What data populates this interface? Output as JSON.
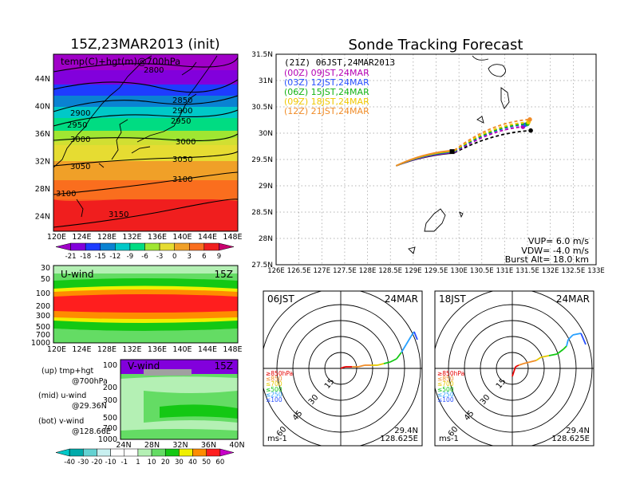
{
  "left_panel": {
    "title": "15Z,23MAR2013 (init)",
    "map": {
      "label": "temp(C)+hgt(m)@700hPa",
      "lat_ticks": [
        "44N",
        "40N",
        "36N",
        "32N",
        "28N",
        "24N"
      ],
      "lon_ticks": [
        "120E",
        "124E",
        "128E",
        "132E",
        "136E",
        "140E",
        "144E",
        "148E"
      ],
      "contour_labels": [
        "2800",
        "2850",
        "2900",
        "2900",
        "2950",
        "2950",
        "3000",
        "3000",
        "3050",
        "3050",
        "3100",
        "3100",
        "3150"
      ],
      "colorbar_labels": [
        "-21",
        "-18",
        "-15",
        "-12",
        "-9",
        "-6",
        "-3",
        "0",
        "3",
        "6",
        "9"
      ],
      "colorbar_colors": [
        "#a000c8",
        "#8200dc",
        "#1e3cff",
        "#0a82d2",
        "#00c8c8",
        "#00dc82",
        "#a0e632",
        "#e6dc32",
        "#f0a028",
        "#fa6e1e",
        "#f01e1e",
        "#c8006e"
      ]
    },
    "uwind": {
      "label": "U-wind",
      "time": "15Z",
      "p_ticks": [
        "30",
        "50",
        "100",
        "200",
        "300",
        "500",
        "700",
        "1000"
      ],
      "lon_ticks": [
        "120E",
        "124E",
        "128E",
        "132E",
        "136E",
        "140E",
        "144E",
        "148E"
      ]
    },
    "vwind": {
      "label": "V-wind",
      "time": "15Z",
      "p_ticks": [
        "100",
        "200",
        "300",
        "500",
        "700",
        "1000"
      ],
      "lat_ticks": [
        "24N",
        "28N",
        "32N",
        "36N",
        "40N"
      ]
    },
    "legend_text": [
      "(up) tmp+hgt",
      "@700hPa",
      "(mid) u-wind",
      "@29.36N",
      "(bot) v-wind",
      "@128.66E"
    ],
    "wind_colorbar_labels": [
      "-40",
      "-30",
      "-20",
      "-10",
      "-1",
      "1",
      "10",
      "20",
      "30",
      "40",
      "50",
      "60"
    ],
    "wind_colorbar_colors": [
      "#00c8c8",
      "#00aaaa",
      "#64d2d2",
      "#c8f0f0",
      "#ffffff",
      "#ffffff",
      "#b4f0b4",
      "#64dc64",
      "#14c814",
      "#f0f000",
      "#ff8c00",
      "#ff1e1e",
      "#c800c8"
    ]
  },
  "tracking": {
    "title": "Sonde Tracking Forecast",
    "header": "(21Z) 06JST,24MAR2013",
    "legend": [
      {
        "label": "(00Z) 09JST,24MAR",
        "color": "#b400b4"
      },
      {
        "label": "(03Z) 12JST,24MAR",
        "color": "#2850ff"
      },
      {
        "label": "(06Z) 15JST,24MAR",
        "color": "#14b414"
      },
      {
        "label": "(09Z) 18JST,24MAR",
        "color": "#f0c800"
      },
      {
        "label": "(12Z) 21JST,24MAR",
        "color": "#f08c28"
      }
    ],
    "lat_ticks": [
      "31.5N",
      "31N",
      "30.5N",
      "30N",
      "29.5N",
      "29N",
      "28.5N",
      "28N",
      "27.5N"
    ],
    "lon_ticks": [
      "126E",
      "126.5E",
      "127E",
      "127.5E",
      "128E",
      "128.5E",
      "129E",
      "129.5E",
      "130E",
      "130.5E",
      "131E",
      "131.5E",
      "132E",
      "132.5E",
      "133E"
    ],
    "info": [
      "VUP=  6.0  m/s",
      "VDW= -4.0  m/s",
      "Burst Alt=  18.0  km"
    ]
  },
  "hodo_left": {
    "time": "06JST",
    "date": "24MAR",
    "ring_labels": [
      "15",
      "30",
      "45",
      "60"
    ],
    "level_legend": [
      "≥850hPa",
      "≤850",
      "≤700",
      "≤500",
      "≤250",
      "≤100"
    ],
    "level_colors": [
      "#e60000",
      "#f08c28",
      "#e6c800",
      "#14c814",
      "#28a0ff",
      "#2850ff"
    ],
    "unit": "ms-1",
    "lat": "29.4N",
    "lon": "128.625E"
  },
  "hodo_right": {
    "time": "18JST",
    "date": "24MAR",
    "ring_labels": [
      "15",
      "30",
      "45",
      "60"
    ],
    "level_legend": [
      "≥850hPa",
      "≤850",
      "≤700",
      "≤500",
      "≤250",
      "≤100"
    ],
    "level_colors": [
      "#e60000",
      "#f08c28",
      "#e6c800",
      "#14c814",
      "#28a0ff",
      "#2850ff"
    ],
    "unit": "ms-1",
    "lat": "29.4N",
    "lon": "128.625E"
  }
}
